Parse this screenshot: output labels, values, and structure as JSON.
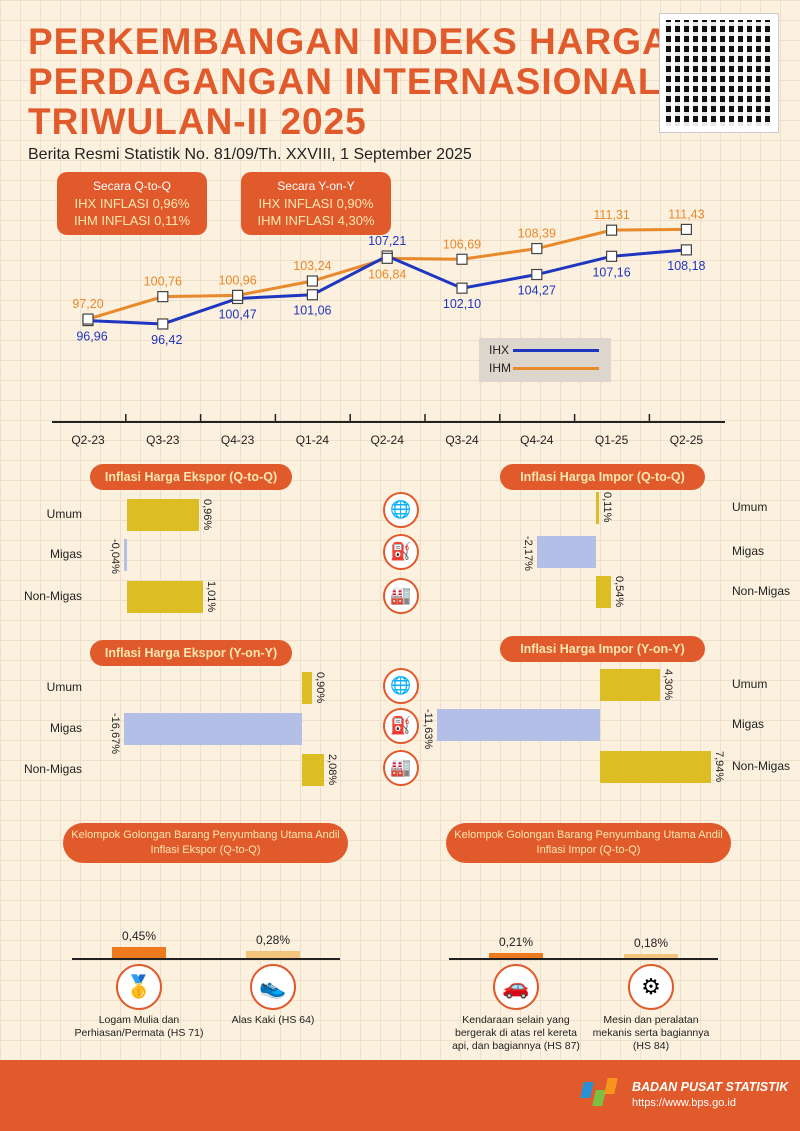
{
  "header": {
    "title_lines": [
      "PERKEMBANGAN INDEKS HARGA",
      "PERDAGANGAN INTERNASIONAL",
      "TRIWULAN-II 2025"
    ],
    "subtitle": "Berita Resmi Statistik No. 81/09/Th. XXVIII, 1 September 2025"
  },
  "summary": [
    {
      "heading": "Secara Q-to-Q",
      "ihx": "IHX INFLASI 0,96%",
      "ihm": "IHM INFLASI 0,11%"
    },
    {
      "heading": "Secara Y-on-Y",
      "ihx": "IHX INFLASI 0,90%",
      "ihm": "IHM INFLASI 4,30%"
    }
  ],
  "colors": {
    "ihx": "#1f36c0",
    "ihm": "#e8892c",
    "accent": "#e05a2b",
    "bar_yellow": "#dcbe24",
    "bar_blue": "#b4bfe8"
  },
  "chart_data": [
    {
      "type": "line",
      "categories": [
        "Q2-23",
        "Q3-23",
        "Q4-23",
        "Q1-24",
        "Q2-24",
        "Q3-24",
        "Q4-24",
        "Q1-25",
        "Q2-25"
      ],
      "series": [
        {
          "name": "IHX",
          "values": [
            96.96,
            96.42,
            100.47,
            101.06,
            107.21,
            102.1,
            104.27,
            107.16,
            108.18
          ],
          "labels": [
            "96,96",
            "96,42",
            "100,47",
            "101,06",
            "107,21",
            "102,10",
            "104,27",
            "107,16",
            "108,18"
          ]
        },
        {
          "name": "IHM",
          "values": [
            97.2,
            100.76,
            100.96,
            103.24,
            106.84,
            106.69,
            108.39,
            111.31,
            111.43
          ],
          "labels": [
            "97,20",
            "100,76",
            "100,96",
            "103,24",
            "106,84",
            "106,69",
            "108,39",
            "111,31",
            "111,43"
          ]
        }
      ],
      "legend": "center-right"
    },
    {
      "type": "bar",
      "title": "Inflasi Harga Ekspor (Q-to-Q)",
      "categories": [
        "Umum",
        "Migas",
        "Non-Migas"
      ],
      "values": [
        0.96,
        -0.04,
        1.01
      ],
      "labels": [
        "0,96%",
        "-0,04%",
        "1,01%"
      ]
    },
    {
      "type": "bar",
      "title": "Inflasi Harga Impor (Q-to-Q)",
      "categories": [
        "Umum",
        "Migas",
        "Non-Migas"
      ],
      "values": [
        0.11,
        -2.17,
        0.54
      ],
      "labels": [
        "0,11%",
        "-2,17%",
        "0,54%"
      ]
    },
    {
      "type": "bar",
      "title": "Inflasi Harga Ekspor (Y-on-Y)",
      "categories": [
        "Umum",
        "Migas",
        "Non-Migas"
      ],
      "values": [
        0.9,
        -16.67,
        2.08
      ],
      "labels": [
        "0,90%",
        "-16,67%",
        "2,08%"
      ]
    },
    {
      "type": "bar",
      "title": "Inflasi Harga Impor (Y-on-Y)",
      "categories": [
        "Umum",
        "Migas",
        "Non-Migas"
      ],
      "values": [
        4.3,
        -11.63,
        7.94
      ],
      "labels": [
        "4,30%",
        "-11,63%",
        "7,94%"
      ]
    },
    {
      "type": "bar",
      "title": "Kelompok Golongan Barang Penyumbang Utama Andil Inflasi Ekspor (Q-to-Q)",
      "categories": [
        "Logam Mulia dan Perhiasan/Permata (HS 71)",
        "Alas Kaki (HS 64)"
      ],
      "values": [
        0.45,
        0.28
      ],
      "labels": [
        "0,45%",
        "0,28%"
      ]
    },
    {
      "type": "bar",
      "title": "Kelompok Golongan Barang Penyumbang Utama Andil Inflasi Impor (Q-to-Q)",
      "categories": [
        "Kendaraan selain yang bergerak di atas rel kereta api, dan bagiannya (HS 87)",
        "Mesin dan peralatan mekanis serta bagiannya (HS 84)"
      ],
      "values": [
        0.21,
        0.18
      ],
      "labels": [
        "0,21%",
        "0,18%"
      ]
    }
  ],
  "footer": {
    "org": "BADAN PUSAT STATISTIK",
    "url": "https://www.bps.go.id"
  }
}
